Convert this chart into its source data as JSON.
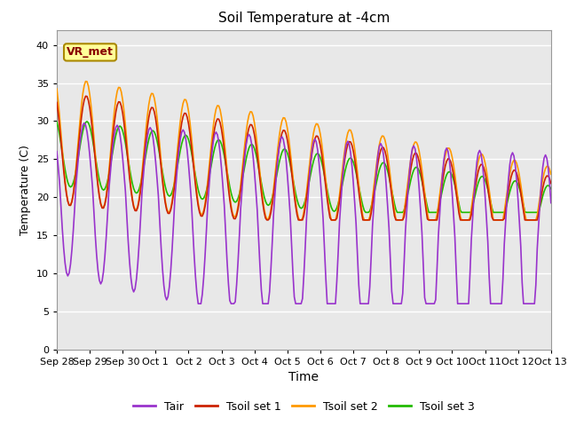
{
  "title": "Soil Temperature at -4cm",
  "xlabel": "Time",
  "ylabel": "Temperature (C)",
  "ylim": [
    0,
    42
  ],
  "yticks": [
    0,
    5,
    10,
    15,
    20,
    25,
    30,
    35,
    40
  ],
  "fig_bg_color": "#ffffff",
  "plot_bg_color": "#e8e8e8",
  "grid_color": "#ffffff",
  "line_colors": {
    "Tair": "#9933cc",
    "Tsoil_set1": "#cc2200",
    "Tsoil_set2": "#ff9900",
    "Tsoil_set3": "#22bb00"
  },
  "annotation_text": "VR_met",
  "xtick_labels": [
    "Sep 28",
    "Sep 29",
    "Sep 30",
    "Oct 1",
    "Oct 2",
    "Oct 3",
    "Oct 4",
    "Oct 5",
    "Oct 6",
    "Oct 7",
    "Oct 8",
    "Oct 9",
    "Oct 10",
    "Oct 11",
    "Oct 12",
    "Oct 13"
  ],
  "num_days": 16
}
